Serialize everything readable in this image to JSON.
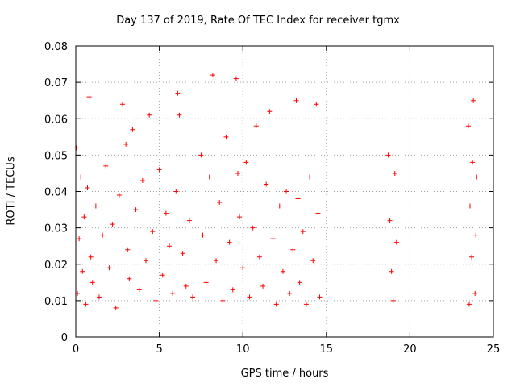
{
  "chart_data": {
    "type": "scatter",
    "title": "Day 137 of 2019, Rate Of TEC Index for receiver tgmx",
    "xlabel": "GPS time / hours",
    "ylabel": "ROTI / TECUs",
    "xlim": [
      0,
      25
    ],
    "ylim": [
      0,
      0.08
    ],
    "xticks": [
      0,
      5,
      10,
      15,
      20,
      25
    ],
    "xtick_labels": [
      "0",
      "5",
      "10",
      "15",
      "20",
      "25"
    ],
    "yticks": [
      0,
      0.01,
      0.02,
      0.03,
      0.04,
      0.05,
      0.06,
      0.07,
      0.08
    ],
    "ytick_labels": [
      "0",
      "0.01",
      "0.02",
      "0.03",
      "0.04",
      "0.05",
      "0.06",
      "0.07",
      "0.08"
    ],
    "grid": true,
    "marker": "+",
    "color": "#ff0000",
    "series": [
      {
        "name": "ROTI",
        "points": [
          [
            0.05,
            0.052
          ],
          [
            0.1,
            0.012
          ],
          [
            0.2,
            0.027
          ],
          [
            0.3,
            0.044
          ],
          [
            0.4,
            0.018
          ],
          [
            0.5,
            0.033
          ],
          [
            0.6,
            0.009
          ],
          [
            0.7,
            0.041
          ],
          [
            0.8,
            0.066
          ],
          [
            0.9,
            0.022
          ],
          [
            1.0,
            0.015
          ],
          [
            1.2,
            0.036
          ],
          [
            1.4,
            0.011
          ],
          [
            1.6,
            0.028
          ],
          [
            1.8,
            0.047
          ],
          [
            2.0,
            0.019
          ],
          [
            2.2,
            0.031
          ],
          [
            2.4,
            0.008
          ],
          [
            2.6,
            0.039
          ],
          [
            2.8,
            0.064
          ],
          [
            3.0,
            0.053
          ],
          [
            3.1,
            0.024
          ],
          [
            3.2,
            0.016
          ],
          [
            3.4,
            0.057
          ],
          [
            3.6,
            0.035
          ],
          [
            3.8,
            0.013
          ],
          [
            4.0,
            0.043
          ],
          [
            4.2,
            0.021
          ],
          [
            4.4,
            0.061
          ],
          [
            4.6,
            0.029
          ],
          [
            4.8,
            0.01
          ],
          [
            5.0,
            0.046
          ],
          [
            5.2,
            0.017
          ],
          [
            5.4,
            0.034
          ],
          [
            5.6,
            0.025
          ],
          [
            5.8,
            0.012
          ],
          [
            6.0,
            0.04
          ],
          [
            6.1,
            0.067
          ],
          [
            6.2,
            0.061
          ],
          [
            6.4,
            0.023
          ],
          [
            6.6,
            0.014
          ],
          [
            6.8,
            0.032
          ],
          [
            7.0,
            0.011
          ],
          [
            7.5,
            0.05
          ],
          [
            7.6,
            0.028
          ],
          [
            7.8,
            0.015
          ],
          [
            8.0,
            0.044
          ],
          [
            8.2,
            0.072
          ],
          [
            8.4,
            0.021
          ],
          [
            8.6,
            0.037
          ],
          [
            8.8,
            0.01
          ],
          [
            9.0,
            0.055
          ],
          [
            9.2,
            0.026
          ],
          [
            9.4,
            0.013
          ],
          [
            9.6,
            0.071
          ],
          [
            9.7,
            0.045
          ],
          [
            9.8,
            0.033
          ],
          [
            10.0,
            0.019
          ],
          [
            10.2,
            0.048
          ],
          [
            10.4,
            0.011
          ],
          [
            10.6,
            0.03
          ],
          [
            10.8,
            0.058
          ],
          [
            11.0,
            0.022
          ],
          [
            11.2,
            0.014
          ],
          [
            11.4,
            0.042
          ],
          [
            11.6,
            0.062
          ],
          [
            11.8,
            0.027
          ],
          [
            12.0,
            0.009
          ],
          [
            12.2,
            0.036
          ],
          [
            12.4,
            0.018
          ],
          [
            12.6,
            0.04
          ],
          [
            12.8,
            0.012
          ],
          [
            13.0,
            0.024
          ],
          [
            13.2,
            0.065
          ],
          [
            13.3,
            0.038
          ],
          [
            13.4,
            0.015
          ],
          [
            13.6,
            0.029
          ],
          [
            13.8,
            0.009
          ],
          [
            14.0,
            0.044
          ],
          [
            14.2,
            0.021
          ],
          [
            14.4,
            0.064
          ],
          [
            14.5,
            0.034
          ],
          [
            14.6,
            0.011
          ],
          [
            18.7,
            0.05
          ],
          [
            18.8,
            0.032
          ],
          [
            18.9,
            0.018
          ],
          [
            19.0,
            0.01
          ],
          [
            19.1,
            0.045
          ],
          [
            19.2,
            0.026
          ],
          [
            23.5,
            0.058
          ],
          [
            23.6,
            0.036
          ],
          [
            23.7,
            0.022
          ],
          [
            23.8,
            0.065
          ],
          [
            23.9,
            0.012
          ],
          [
            24.0,
            0.044
          ],
          [
            23.55,
            0.009
          ],
          [
            23.75,
            0.048
          ],
          [
            23.95,
            0.028
          ]
        ]
      }
    ]
  }
}
